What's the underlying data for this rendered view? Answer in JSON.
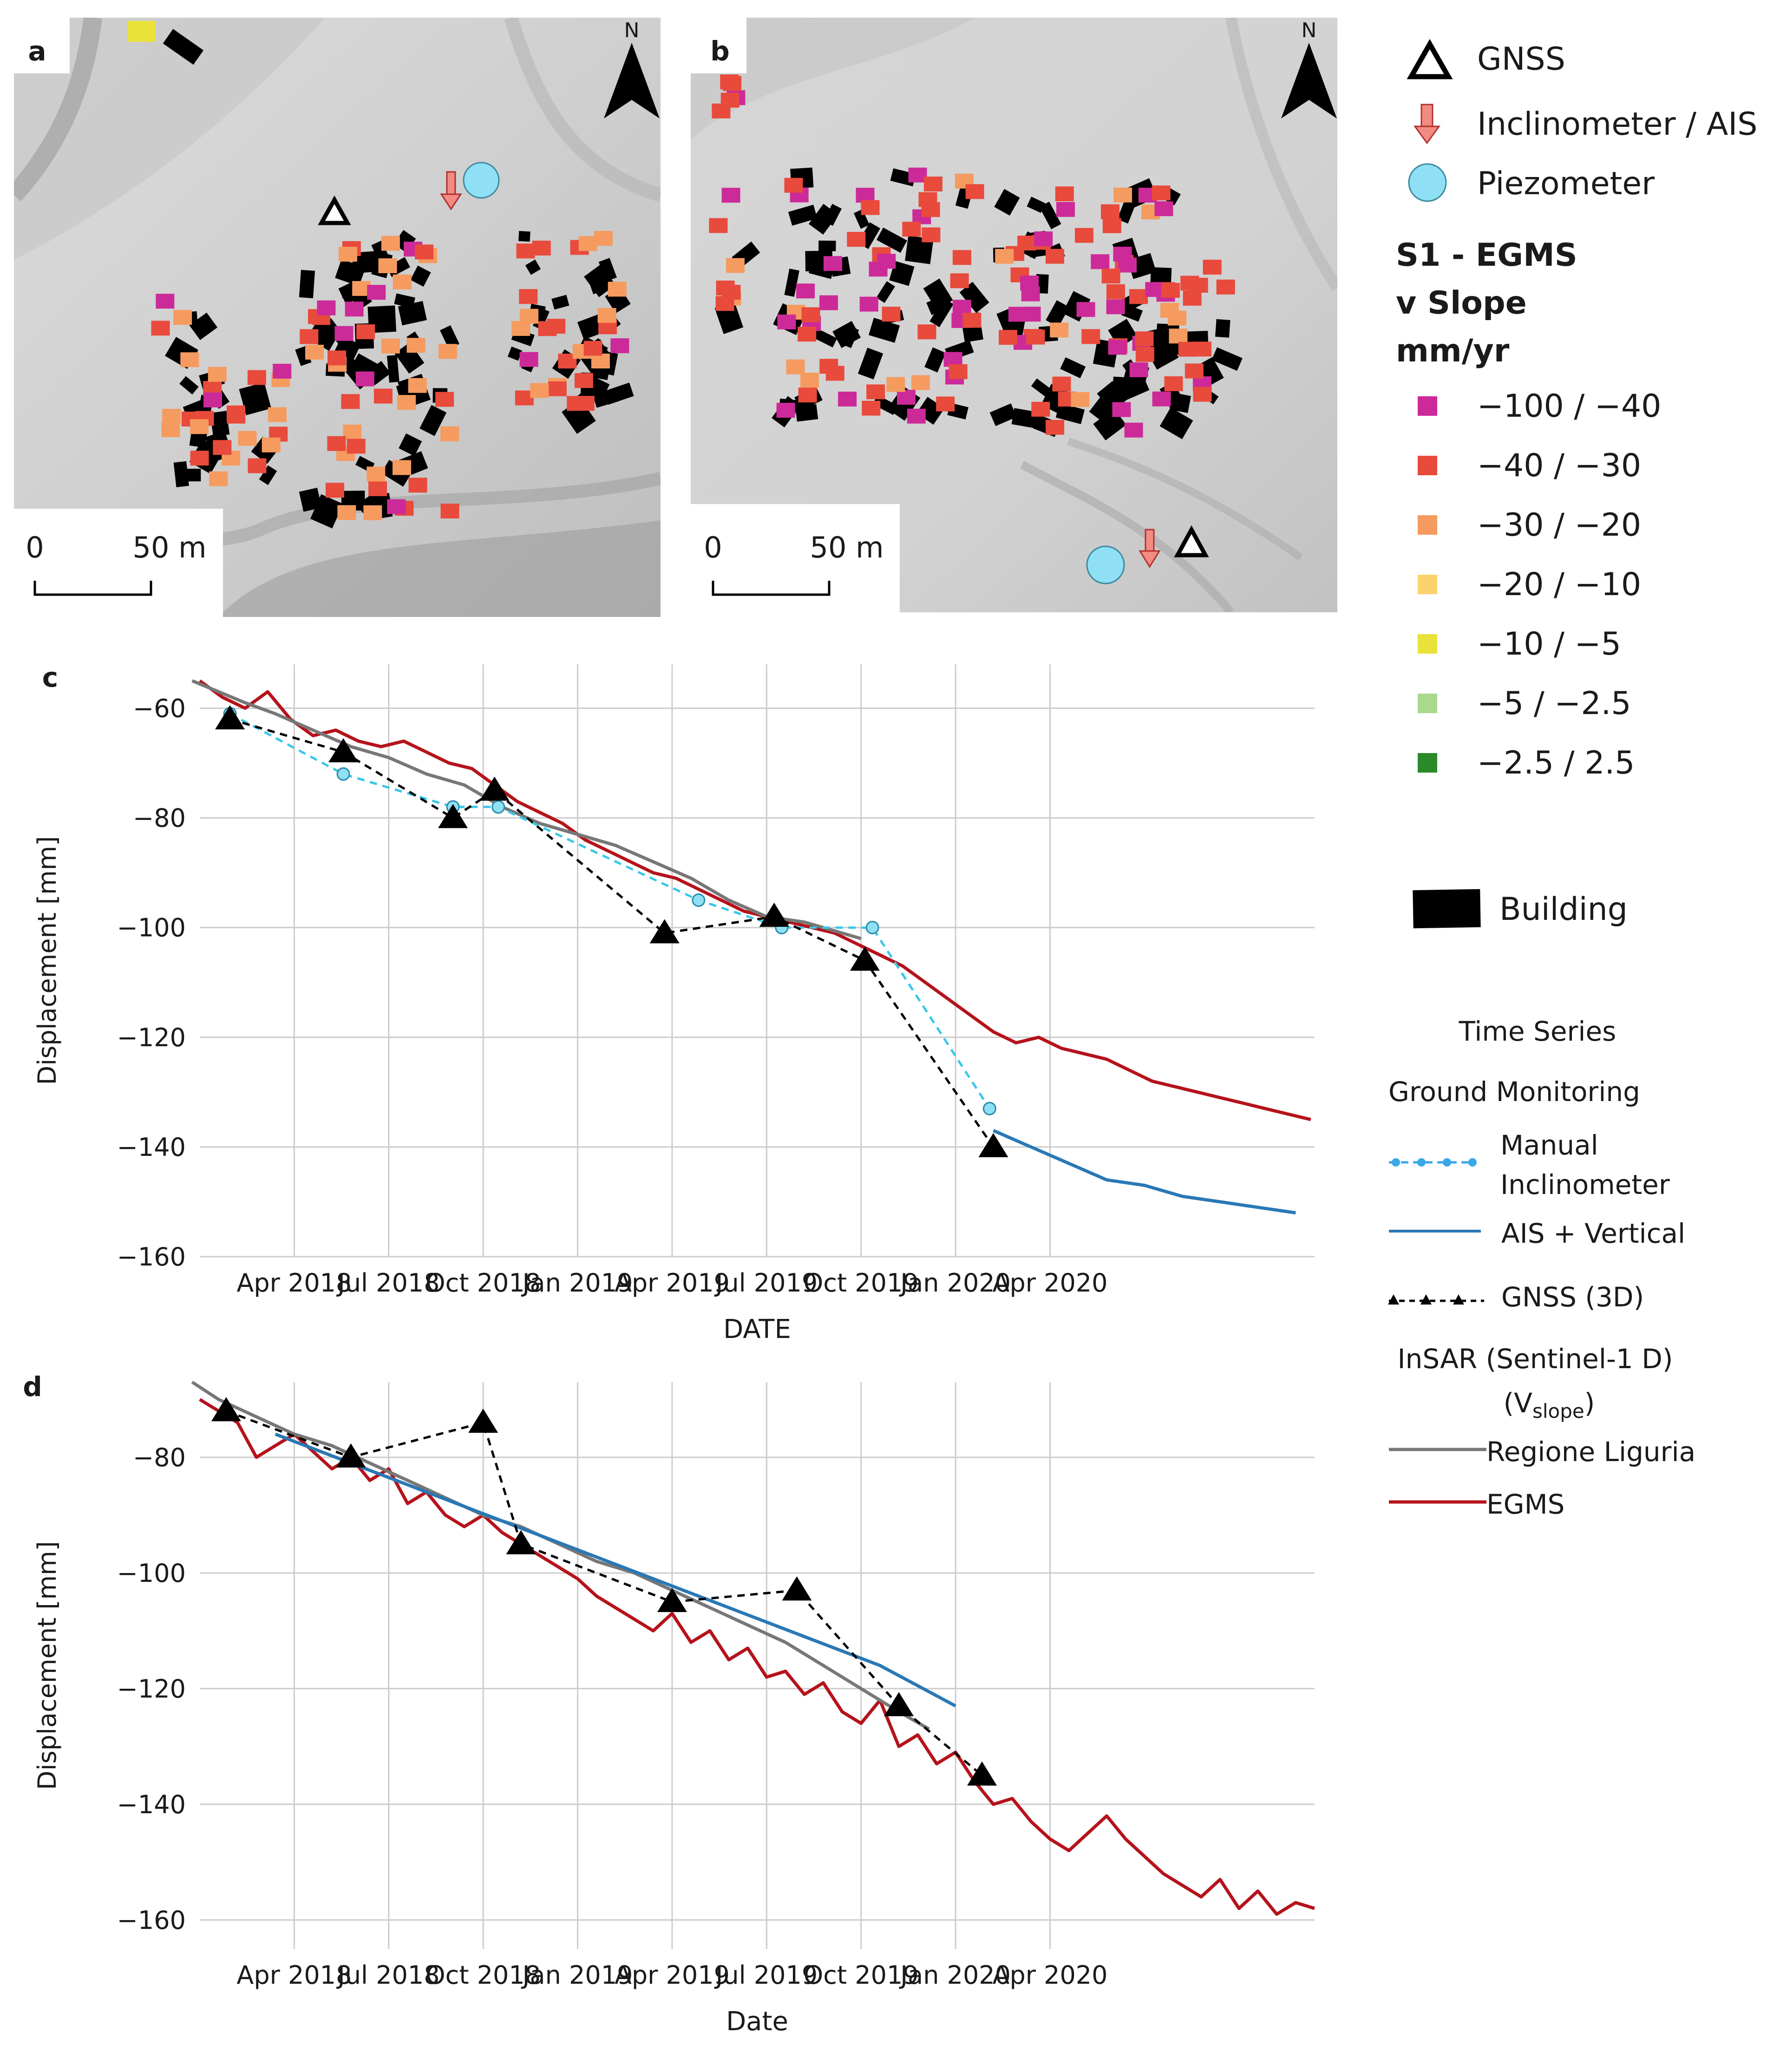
{
  "panels": {
    "a": {
      "letter": "a",
      "north": "N",
      "scale_zero": "0",
      "scale_label": "50 m"
    },
    "b": {
      "letter": "b",
      "north": "N",
      "scale_zero": "0",
      "scale_label": "50 m"
    }
  },
  "legend": {
    "gnss": "GNSS",
    "inclinometer": "Inclinometer / AIS",
    "piezometer": "Piezometer",
    "title_lines": [
      "S1 - EGMS",
      "v Slope",
      "mm/yr"
    ],
    "classes": [
      {
        "label": "−100 / −40",
        "color": "#cc2a99"
      },
      {
        "label": "−40 / −30",
        "color": "#e84a3c"
      },
      {
        "label": "−30 / −20",
        "color": "#f59b5f"
      },
      {
        "label": "−20 / −10",
        "color": "#fad26e"
      },
      {
        "label": "−10 / −5",
        "color": "#e8e23a"
      },
      {
        "label": "−5 / −2.5",
        "color": "#a9d98b"
      },
      {
        "label": "−2.5 / 2.5",
        "color": "#2a8a2a"
      }
    ],
    "building": "Building",
    "ts_title": "Time Series",
    "ground_title": "Ground Monitoring",
    "manual_1": "Manual",
    "manual_2": "Inclinometer",
    "ais": "AIS + Vertical",
    "gnss3d": "GNSS (3D)",
    "insar_1": "InSAR (Sentinel-1 D)",
    "insar_2_pre": "(V",
    "insar_2_sub": "slope",
    "insar_2_post": ")",
    "liguria": "Regione Liguria",
    "egms": "EGMS"
  },
  "colors": {
    "egms": "#b5121b",
    "liguria": "#777777",
    "ais": "#2a78b5",
    "manual": "#38c8e8",
    "gnss": "#000000",
    "grid": "#cccccc"
  },
  "chart_data": [
    {
      "panel": "c",
      "type": "line",
      "xlabel": "DATE",
      "ylabel": "Displacement [mm]",
      "xlim": [
        2018.0,
        2020.95
      ],
      "ylim": [
        -160,
        -52
      ],
      "x_ticks": [
        {
          "label": "Apr 2018",
          "x": 2018.25
        },
        {
          "label": "Jul 2018",
          "x": 2018.5
        },
        {
          "label": "Oct 2018",
          "x": 2018.75
        },
        {
          "label": "Jan 2019",
          "x": 2019.0
        },
        {
          "label": "Apr 2019",
          "x": 2019.25
        },
        {
          "label": "Jul 2019",
          "x": 2019.5
        },
        {
          "label": "Oct 2019",
          "x": 2019.75
        },
        {
          "label": "Jan 2020",
          "x": 2020.0
        },
        {
          "label": "Apr 2020",
          "x": 2020.25
        }
      ],
      "y_ticks": [
        {
          "label": "−60",
          "y": -60
        },
        {
          "label": "−80",
          "y": -80
        },
        {
          "label": "−100",
          "y": -100
        },
        {
          "label": "−120",
          "y": -120
        },
        {
          "label": "−140",
          "y": -140
        },
        {
          "label": "−160",
          "y": -160
        }
      ],
      "series": [
        {
          "name": "EGMS",
          "color_key": "egms",
          "style": "solid",
          "x": [
            2018.0,
            2018.06,
            2018.12,
            2018.18,
            2018.24,
            2018.3,
            2018.36,
            2018.42,
            2018.48,
            2018.54,
            2018.6,
            2018.66,
            2018.72,
            2018.78,
            2018.84,
            2018.9,
            2018.96,
            2019.02,
            2019.08,
            2019.14,
            2019.2,
            2019.26,
            2019.32,
            2019.38,
            2019.44,
            2019.5,
            2019.56,
            2019.62,
            2019.68,
            2019.74,
            2019.8,
            2019.86,
            2019.92,
            2019.98,
            2020.04,
            2020.1,
            2020.16,
            2020.22,
            2020.28,
            2020.34,
            2020.4,
            2020.46,
            2020.52,
            2020.58,
            2020.64,
            2020.7,
            2020.76,
            2020.82,
            2020.88,
            2020.94
          ],
          "y": [
            -55,
            -58,
            -60,
            -57,
            -62,
            -65,
            -64,
            -66,
            -67,
            -66,
            -68,
            -70,
            -71,
            -74,
            -77,
            -79,
            -81,
            -84,
            -86,
            -88,
            -90,
            -91,
            -93,
            -95,
            -97,
            -98,
            -99,
            -100,
            -101,
            -103,
            -105,
            -107,
            -110,
            -113,
            -116,
            -119,
            -121,
            -120,
            -122,
            -123,
            -124,
            -126,
            -128,
            -129,
            -130,
            -131,
            -132,
            -133,
            -134,
            -135
          ]
        },
        {
          "name": "Regione Liguria",
          "color_key": "liguria",
          "style": "solid",
          "x": [
            2017.98,
            2018.05,
            2018.12,
            2018.2,
            2018.3,
            2018.4,
            2018.5,
            2018.6,
            2018.7,
            2018.8,
            2018.9,
            2019.0,
            2019.1,
            2019.2,
            2019.3,
            2019.4,
            2019.5,
            2019.6,
            2019.7,
            2019.75
          ],
          "y": [
            -55,
            -57,
            -59,
            -61,
            -64,
            -67,
            -69,
            -72,
            -74,
            -78,
            -81,
            -83,
            -85,
            -88,
            -91,
            -95,
            -98,
            -99,
            -101,
            -102
          ]
        },
        {
          "name": "AIS + Vertical",
          "color_key": "ais",
          "style": "solid",
          "x": [
            2020.1,
            2020.2,
            2020.3,
            2020.4,
            2020.5,
            2020.6,
            2020.7,
            2020.8,
            2020.9
          ],
          "y": [
            -137,
            -140,
            -143,
            -146,
            -147,
            -149,
            -150,
            -151,
            -152
          ]
        },
        {
          "name": "Manual Inclinometer",
          "color_key": "manual",
          "style": "dashed",
          "markers": "circle",
          "x": [
            2018.08,
            2018.38,
            2018.67,
            2018.79,
            2019.32,
            2019.54,
            2019.78,
            2020.09
          ],
          "y": [
            -61,
            -72,
            -78,
            -78,
            -95,
            -100,
            -100,
            -133
          ]
        },
        {
          "name": "GNSS (3D)",
          "color_key": "gnss",
          "style": "dashed",
          "markers": "triangle",
          "x": [
            2018.08,
            2018.38,
            2018.67,
            2018.78,
            2019.23,
            2019.52,
            2019.76,
            2020.1
          ],
          "y": [
            -62,
            -68,
            -80,
            -75,
            -101,
            -98,
            -106,
            -140
          ]
        }
      ]
    },
    {
      "panel": "d",
      "type": "line",
      "xlabel": "Date",
      "ylabel": "Displacement [mm]",
      "xlim": [
        2018.0,
        2020.95
      ],
      "ylim": [
        -165,
        -67
      ],
      "x_ticks": [
        {
          "label": "Apr 2018",
          "x": 2018.25
        },
        {
          "label": "Jul 2018",
          "x": 2018.5
        },
        {
          "label": "Oct 2018",
          "x": 2018.75
        },
        {
          "label": "Jan 2019",
          "x": 2019.0
        },
        {
          "label": "Apr 2019",
          "x": 2019.25
        },
        {
          "label": "Jul 2019",
          "x": 2019.5
        },
        {
          "label": "Oct 2019",
          "x": 2019.75
        },
        {
          "label": "Jan 2020",
          "x": 2020.0
        },
        {
          "label": "Apr 2020",
          "x": 2020.25
        }
      ],
      "y_ticks": [
        {
          "label": "−80",
          "y": -80
        },
        {
          "label": "−100",
          "y": -100
        },
        {
          "label": "−120",
          "y": -120
        },
        {
          "label": "−140",
          "y": -140
        },
        {
          "label": "−160",
          "y": -160
        }
      ],
      "series": [
        {
          "name": "EGMS",
          "color_key": "egms",
          "style": "solid",
          "x": [
            2018.0,
            2018.05,
            2018.1,
            2018.15,
            2018.2,
            2018.25,
            2018.3,
            2018.35,
            2018.4,
            2018.45,
            2018.5,
            2018.55,
            2018.6,
            2018.65,
            2018.7,
            2018.75,
            2018.8,
            2018.85,
            2018.9,
            2018.95,
            2019.0,
            2019.05,
            2019.1,
            2019.15,
            2019.2,
            2019.25,
            2019.3,
            2019.35,
            2019.4,
            2019.45,
            2019.5,
            2019.55,
            2019.6,
            2019.65,
            2019.7,
            2019.75,
            2019.8,
            2019.85,
            2019.9,
            2019.95,
            2020.0,
            2020.05,
            2020.1,
            2020.15,
            2020.2,
            2020.25,
            2020.3,
            2020.35,
            2020.4,
            2020.45,
            2020.5,
            2020.55,
            2020.6,
            2020.65,
            2020.7,
            2020.75,
            2020.8,
            2020.85,
            2020.9,
            2020.95
          ],
          "y": [
            -70,
            -72,
            -74,
            -80,
            -78,
            -76,
            -79,
            -82,
            -80,
            -84,
            -82,
            -88,
            -86,
            -90,
            -92,
            -90,
            -93,
            -95,
            -97,
            -99,
            -101,
            -104,
            -106,
            -108,
            -110,
            -107,
            -112,
            -110,
            -115,
            -113,
            -118,
            -117,
            -121,
            -119,
            -124,
            -126,
            -122,
            -130,
            -128,
            -133,
            -131,
            -136,
            -140,
            -139,
            -143,
            -146,
            -148,
            -145,
            -142,
            -146,
            -149,
            -152,
            -154,
            -156,
            -153,
            -158,
            -155,
            -159,
            -157,
            -158
          ]
        },
        {
          "name": "Regione Liguria",
          "color_key": "liguria",
          "style": "solid",
          "x": [
            2017.98,
            2018.05,
            2018.15,
            2018.25,
            2018.35,
            2018.45,
            2018.55,
            2018.65,
            2018.75,
            2018.85,
            2018.95,
            2019.05,
            2019.15,
            2019.25,
            2019.35,
            2019.45,
            2019.55,
            2019.65,
            2019.75,
            2019.85,
            2019.93
          ],
          "y": [
            -67,
            -70,
            -73,
            -76,
            -78,
            -81,
            -84,
            -87,
            -90,
            -92,
            -95,
            -98,
            -100,
            -103,
            -106,
            -109,
            -112,
            -116,
            -120,
            -124,
            -127
          ]
        },
        {
          "name": "AIS + Vertical",
          "color_key": "ais",
          "style": "solid",
          "x": [
            2018.2,
            2018.4,
            2018.6,
            2018.8,
            2019.0,
            2019.2,
            2019.4,
            2019.6,
            2019.8,
            2020.0
          ],
          "y": [
            -76,
            -81,
            -86,
            -91,
            -96,
            -101,
            -106,
            -111,
            -116,
            -123
          ]
        },
        {
          "name": "GNSS (3D)",
          "color_key": "gnss",
          "style": "dashed",
          "markers": "triangle",
          "x": [
            2018.07,
            2018.4,
            2018.75,
            2018.85,
            2019.25,
            2019.58,
            2019.85,
            2020.07
          ],
          "y": [
            -72,
            -80,
            -74,
            -95,
            -105,
            -103,
            -123,
            -135
          ]
        }
      ]
    }
  ]
}
